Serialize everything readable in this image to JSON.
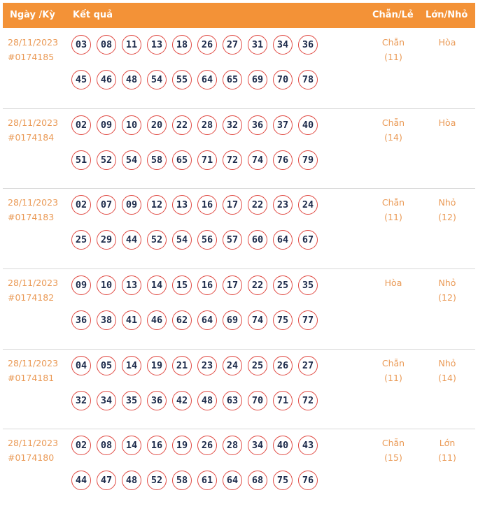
{
  "header": {
    "date_label": "Ngày /Kỳ",
    "results_label": "Kết quả",
    "even_odd_label": "Chẵn/Lẻ",
    "big_small_label": "Lớn/Nhỏ"
  },
  "draws": [
    {
      "date": "28/11/2023",
      "id": "#0174185",
      "numbers": [
        "03",
        "08",
        "11",
        "13",
        "18",
        "26",
        "27",
        "31",
        "34",
        "36",
        "45",
        "46",
        "48",
        "54",
        "55",
        "64",
        "65",
        "69",
        "70",
        "78"
      ],
      "even_odd": "Chẵn",
      "even_odd_count": "(11)",
      "big_small": "Hòa",
      "big_small_count": ""
    },
    {
      "date": "28/11/2023",
      "id": "#0174184",
      "numbers": [
        "02",
        "09",
        "10",
        "20",
        "22",
        "28",
        "32",
        "36",
        "37",
        "40",
        "51",
        "52",
        "54",
        "58",
        "65",
        "71",
        "72",
        "74",
        "76",
        "79"
      ],
      "even_odd": "Chẵn",
      "even_odd_count": "(14)",
      "big_small": "Hòa",
      "big_small_count": ""
    },
    {
      "date": "28/11/2023",
      "id": "#0174183",
      "numbers": [
        "02",
        "07",
        "09",
        "12",
        "13",
        "16",
        "17",
        "22",
        "23",
        "24",
        "25",
        "29",
        "44",
        "52",
        "54",
        "56",
        "57",
        "60",
        "64",
        "67"
      ],
      "even_odd": "Chẵn",
      "even_odd_count": "(11)",
      "big_small": "Nhỏ",
      "big_small_count": "(12)"
    },
    {
      "date": "28/11/2023",
      "id": "#0174182",
      "numbers": [
        "09",
        "10",
        "13",
        "14",
        "15",
        "16",
        "17",
        "22",
        "25",
        "35",
        "36",
        "38",
        "41",
        "46",
        "62",
        "64",
        "69",
        "74",
        "75",
        "77"
      ],
      "even_odd": "Hòa",
      "even_odd_count": "",
      "big_small": "Nhỏ",
      "big_small_count": "(12)"
    },
    {
      "date": "28/11/2023",
      "id": "#0174181",
      "numbers": [
        "04",
        "05",
        "14",
        "19",
        "21",
        "23",
        "24",
        "25",
        "26",
        "27",
        "32",
        "34",
        "35",
        "36",
        "42",
        "48",
        "63",
        "70",
        "71",
        "72"
      ],
      "even_odd": "Chẵn",
      "even_odd_count": "(11)",
      "big_small": "Nhỏ",
      "big_small_count": "(14)"
    },
    {
      "date": "28/11/2023",
      "id": "#0174180",
      "numbers": [
        "02",
        "08",
        "14",
        "16",
        "19",
        "26",
        "28",
        "34",
        "40",
        "43",
        "44",
        "47",
        "48",
        "52",
        "58",
        "61",
        "64",
        "68",
        "75",
        "76"
      ],
      "even_odd": "Chẵn",
      "even_odd_count": "(15)",
      "big_small": "Lớn",
      "big_small_count": "(11)"
    }
  ]
}
